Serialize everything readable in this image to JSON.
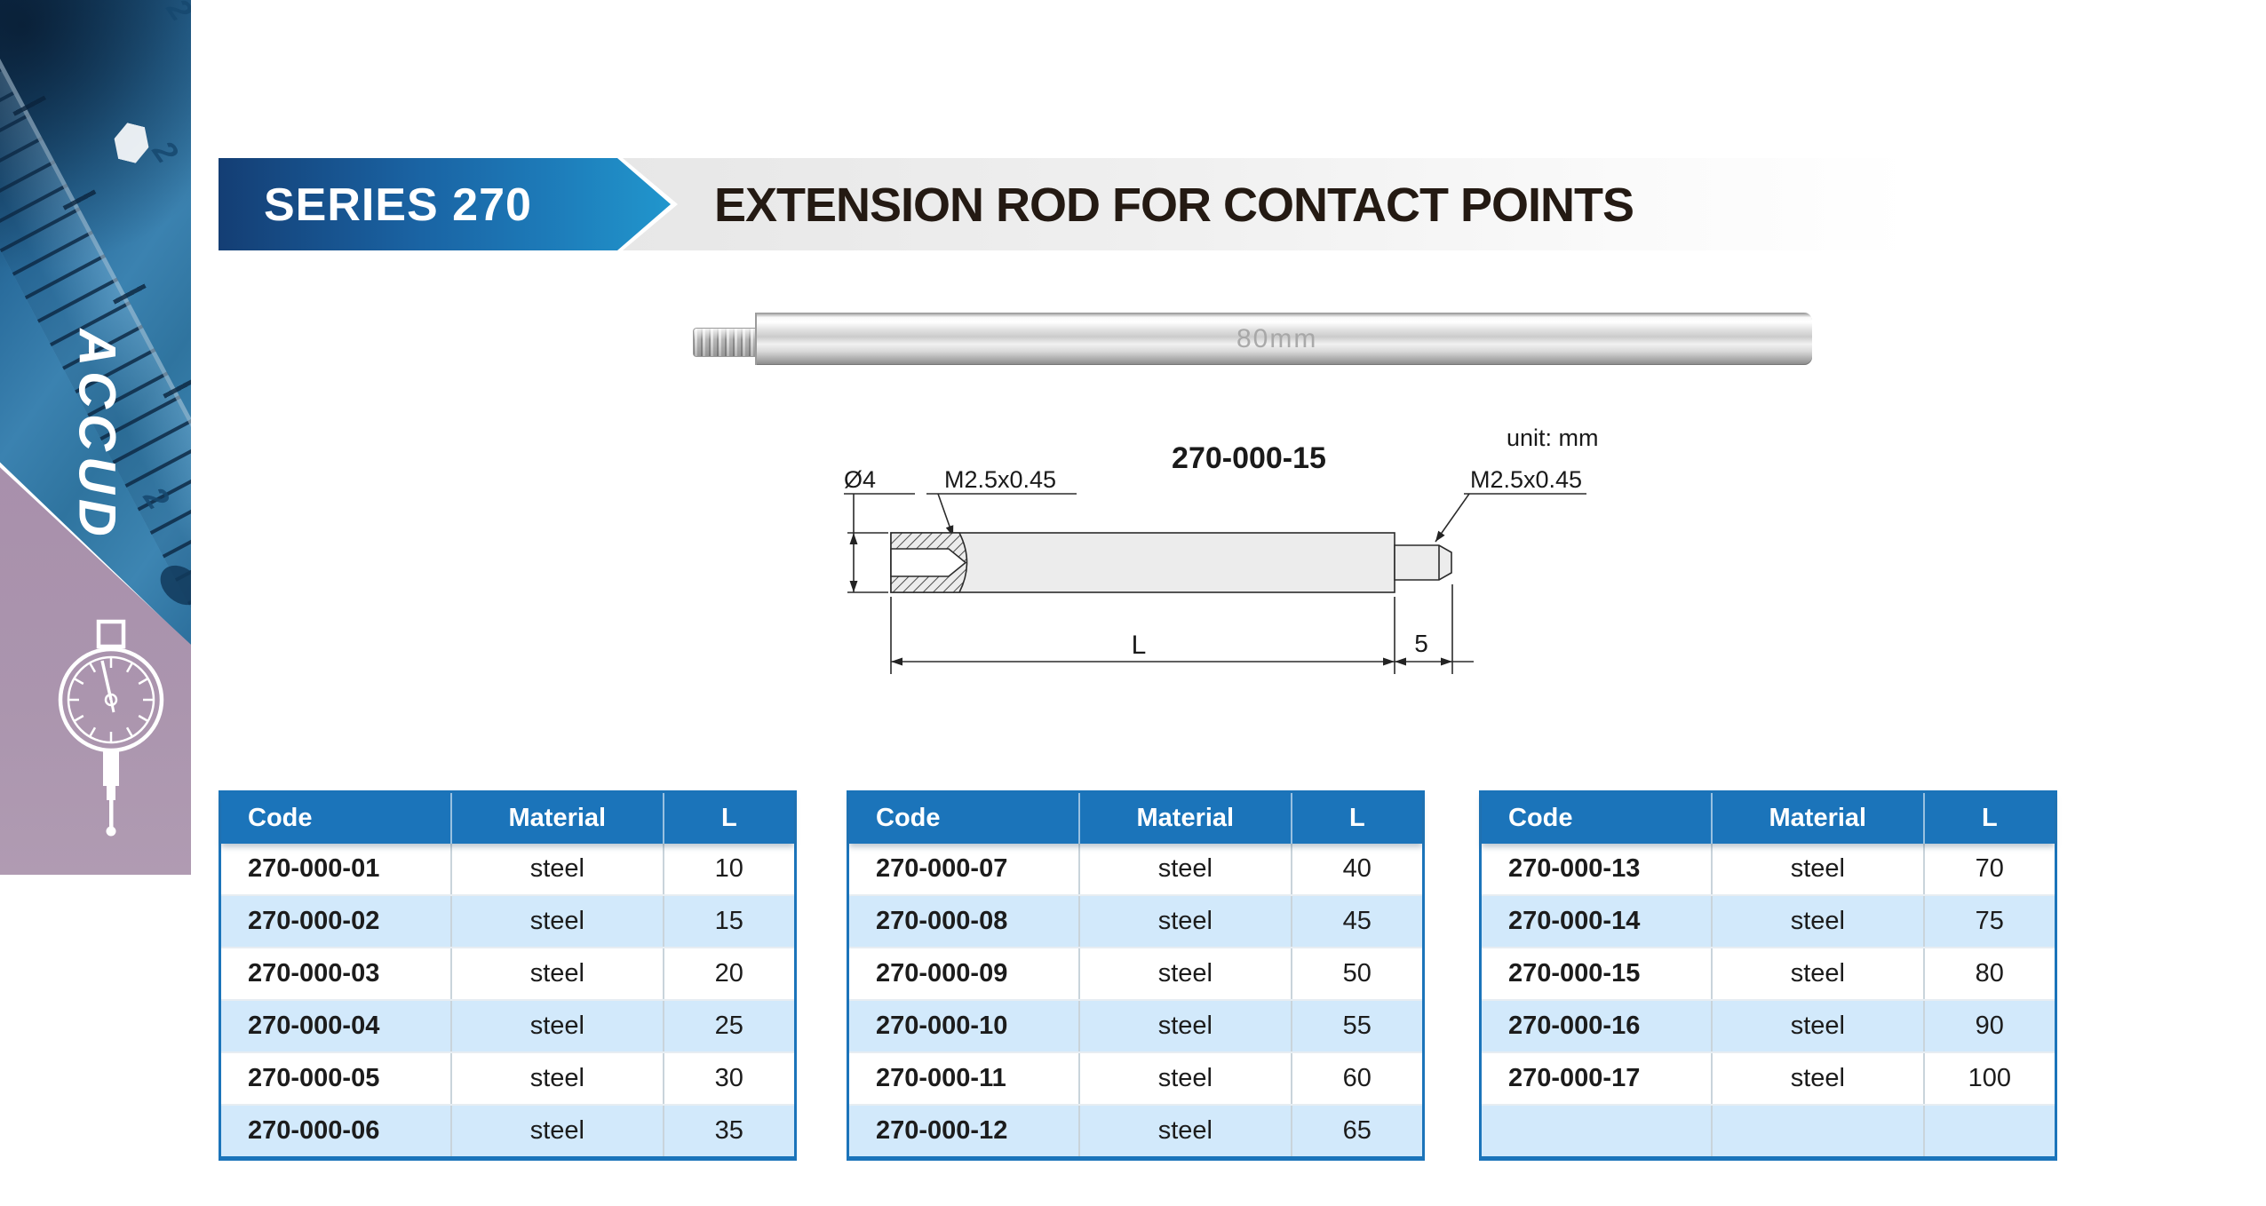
{
  "sidebar": {
    "logo_text": "ACCUD",
    "ruler_digits": [
      "2",
      "2",
      "2"
    ],
    "colors": {
      "photo_blue": "#2e74a4",
      "panel_purple": "#a890ac"
    }
  },
  "banner": {
    "series_label": "SERIES 270",
    "title": "EXTENSION ROD FOR CONTACT POINTS",
    "arrow_color_left": "#143e74",
    "arrow_color_right": "#2196cd",
    "band_color": "#ededed"
  },
  "photo": {
    "engraving": "80mm"
  },
  "drawing": {
    "model_label": "270-000-15",
    "unit_label": "unit: mm",
    "diameter_label": "Ø4",
    "thread_label_left": "M2.5x0.45",
    "thread_label_right": "M2.5x0.45",
    "length_label": "L",
    "tip_length_label": "5"
  },
  "table_style": {
    "header_bg": "#1b74ba",
    "row_alt_bg": "#d2e9fb",
    "border": "#1b74ba"
  },
  "tables": [
    {
      "columns": [
        "Code",
        "Material",
        "L"
      ],
      "rows": [
        [
          "270-000-01",
          "steel",
          "10"
        ],
        [
          "270-000-02",
          "steel",
          "15"
        ],
        [
          "270-000-03",
          "steel",
          "20"
        ],
        [
          "270-000-04",
          "steel",
          "25"
        ],
        [
          "270-000-05",
          "steel",
          "30"
        ],
        [
          "270-000-06",
          "steel",
          "35"
        ]
      ]
    },
    {
      "columns": [
        "Code",
        "Material",
        "L"
      ],
      "rows": [
        [
          "270-000-07",
          "steel",
          "40"
        ],
        [
          "270-000-08",
          "steel",
          "45"
        ],
        [
          "270-000-09",
          "steel",
          "50"
        ],
        [
          "270-000-10",
          "steel",
          "55"
        ],
        [
          "270-000-11",
          "steel",
          "60"
        ],
        [
          "270-000-12",
          "steel",
          "65"
        ]
      ]
    },
    {
      "columns": [
        "Code",
        "Material",
        "L"
      ],
      "rows": [
        [
          "270-000-13",
          "steel",
          "70"
        ],
        [
          "270-000-14",
          "steel",
          "75"
        ],
        [
          "270-000-15",
          "steel",
          "80"
        ],
        [
          "270-000-16",
          "steel",
          "90"
        ],
        [
          "270-000-17",
          "steel",
          "100"
        ],
        [
          "",
          "",
          ""
        ]
      ]
    }
  ]
}
